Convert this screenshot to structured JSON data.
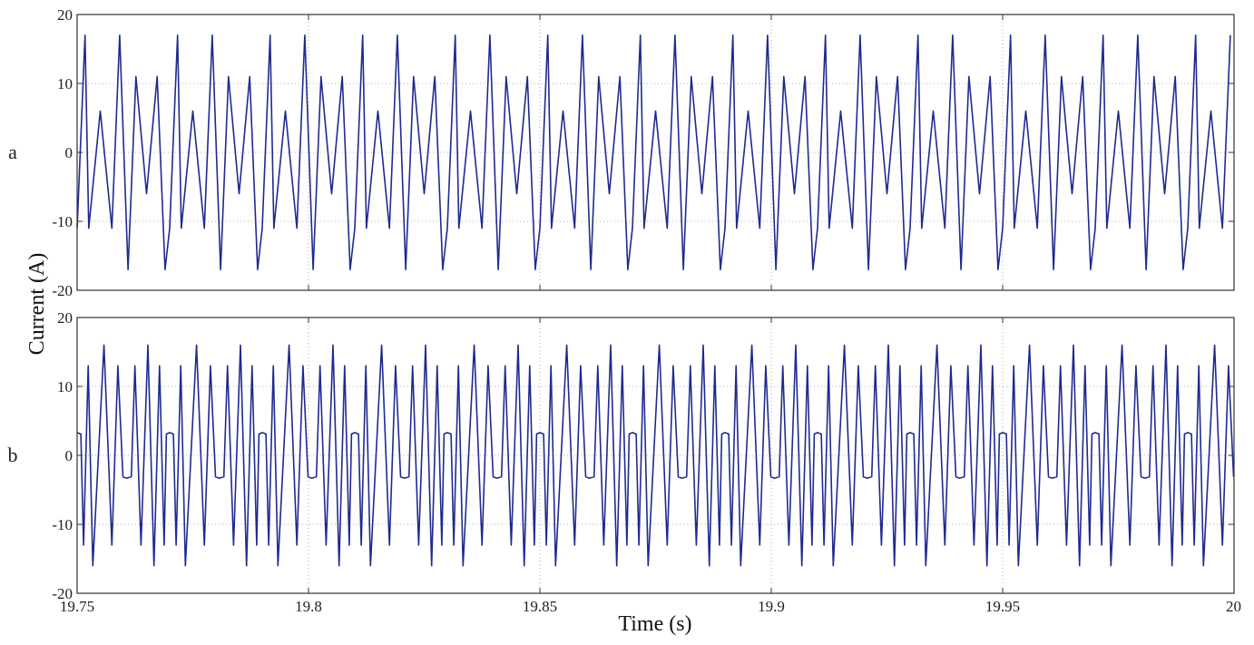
{
  "chart_data": {
    "type": "line",
    "xlabel": "Time (s)",
    "ylabel": "Current (A)",
    "xlim": [
      19.75,
      20
    ],
    "x_ticks": [
      "19.75",
      "19.8",
      "19.85",
      "19.9",
      "19.95",
      "20"
    ],
    "grid": true,
    "series_color": "#1f2a8f",
    "panels": [
      {
        "label": "a",
        "ylim": [
          -20,
          20
        ],
        "y_ticks": [
          "20",
          "10",
          "0",
          "-10",
          "-20"
        ],
        "period": 0.02,
        "x0": 19.75,
        "pattern": [
          {
            "t": 0.0,
            "v": -11
          },
          {
            "t": 0.0017,
            "v": 17
          },
          {
            "t": 0.0025,
            "v": -11
          },
          {
            "t": 0.005,
            "v": 6
          },
          {
            "t": 0.0075,
            "v": -11
          },
          {
            "t": 0.0092,
            "v": 17
          },
          {
            "t": 0.011,
            "v": -17
          },
          {
            "t": 0.0127,
            "v": 11
          },
          {
            "t": 0.015,
            "v": -6
          },
          {
            "t": 0.0173,
            "v": 11
          },
          {
            "t": 0.019,
            "v": -17
          },
          {
            "t": 0.02,
            "v": -11
          }
        ]
      },
      {
        "label": "b",
        "ylim": [
          -20,
          20
        ],
        "y_ticks": [
          "20",
          "10",
          "0",
          "-10",
          "-20"
        ],
        "period": 0.02,
        "x0": 19.75,
        "pattern": [
          {
            "t": 0.0,
            "v": 3.3
          },
          {
            "t": 0.0008,
            "v": 3.1
          },
          {
            "t": 0.0014,
            "v": -13
          },
          {
            "t": 0.0024,
            "v": 13
          },
          {
            "t": 0.0034,
            "v": -16
          },
          {
            "t": 0.0058,
            "v": 16
          },
          {
            "t": 0.0075,
            "v": -13
          },
          {
            "t": 0.0088,
            "v": 13
          },
          {
            "t": 0.0099,
            "v": -3.1
          },
          {
            "t": 0.0107,
            "v": -3.3
          },
          {
            "t": 0.0117,
            "v": -3.1
          },
          {
            "t": 0.0125,
            "v": 13
          },
          {
            "t": 0.0138,
            "v": -13
          },
          {
            "t": 0.0153,
            "v": 16
          },
          {
            "t": 0.0166,
            "v": -16
          },
          {
            "t": 0.0178,
            "v": 13
          },
          {
            "t": 0.0188,
            "v": -13
          },
          {
            "t": 0.0193,
            "v": 3.1
          },
          {
            "t": 0.02,
            "v": 3.3
          }
        ]
      }
    ]
  }
}
